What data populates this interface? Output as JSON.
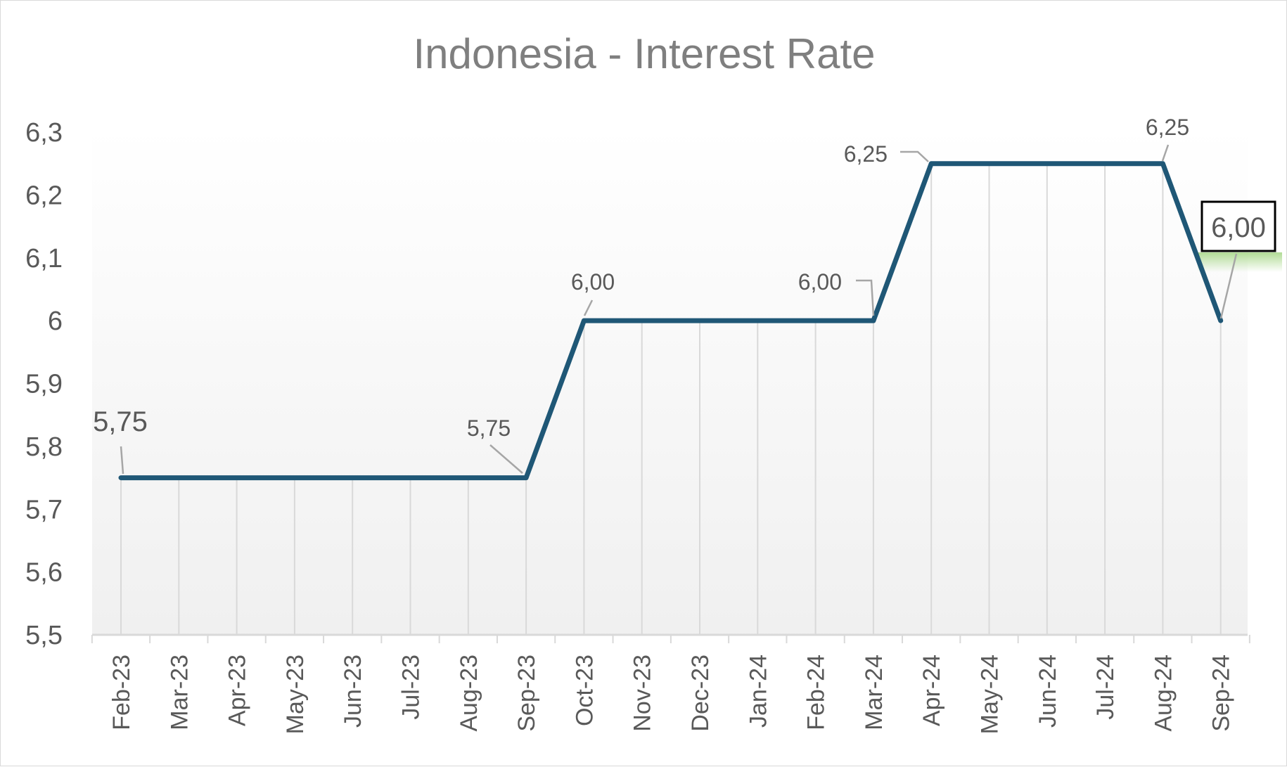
{
  "chart_data": {
    "type": "line",
    "title": "Indonesia - Interest Rate",
    "xlabel": "",
    "ylabel": "",
    "categories": [
      "Feb-23",
      "Mar-23",
      "Apr-23",
      "May-23",
      "Jun-23",
      "Jul-23",
      "Aug-23",
      "Sep-23",
      "Oct-23",
      "Nov-23",
      "Dec-23",
      "Jan-24",
      "Feb-24",
      "Mar-24",
      "Apr-24",
      "May-24",
      "Jun-24",
      "Jul-24",
      "Aug-24",
      "Sep-24"
    ],
    "series": [
      {
        "values": [
          5.75,
          5.75,
          5.75,
          5.75,
          5.75,
          5.75,
          5.75,
          5.75,
          6.0,
          6.0,
          6.0,
          6.0,
          6.0,
          6.0,
          6.25,
          6.25,
          6.25,
          6.25,
          6.25,
          6.0
        ]
      }
    ],
    "ylim": [
      5.5,
      6.3
    ],
    "yticks": [
      "5,5",
      "5,6",
      "5,7",
      "5,8",
      "5,9",
      "6",
      "6,1",
      "6,2",
      "6,3"
    ],
    "data_labels": [
      {
        "index": 0,
        "text": "5,75"
      },
      {
        "index": 7,
        "text": "5,75"
      },
      {
        "index": 8,
        "text": "6,00"
      },
      {
        "index": 13,
        "text": "6,00"
      },
      {
        "index": 14,
        "text": "6,25"
      },
      {
        "index": 18,
        "text": "6,25"
      },
      {
        "index": 19,
        "text": "6,00"
      }
    ],
    "vertical_gridlines": true,
    "colors": {
      "line": "#1f5776",
      "grid": "#d9d9d9",
      "highlight": "#a8d88a",
      "label": "#595959",
      "title": "#7f7f7f"
    }
  }
}
